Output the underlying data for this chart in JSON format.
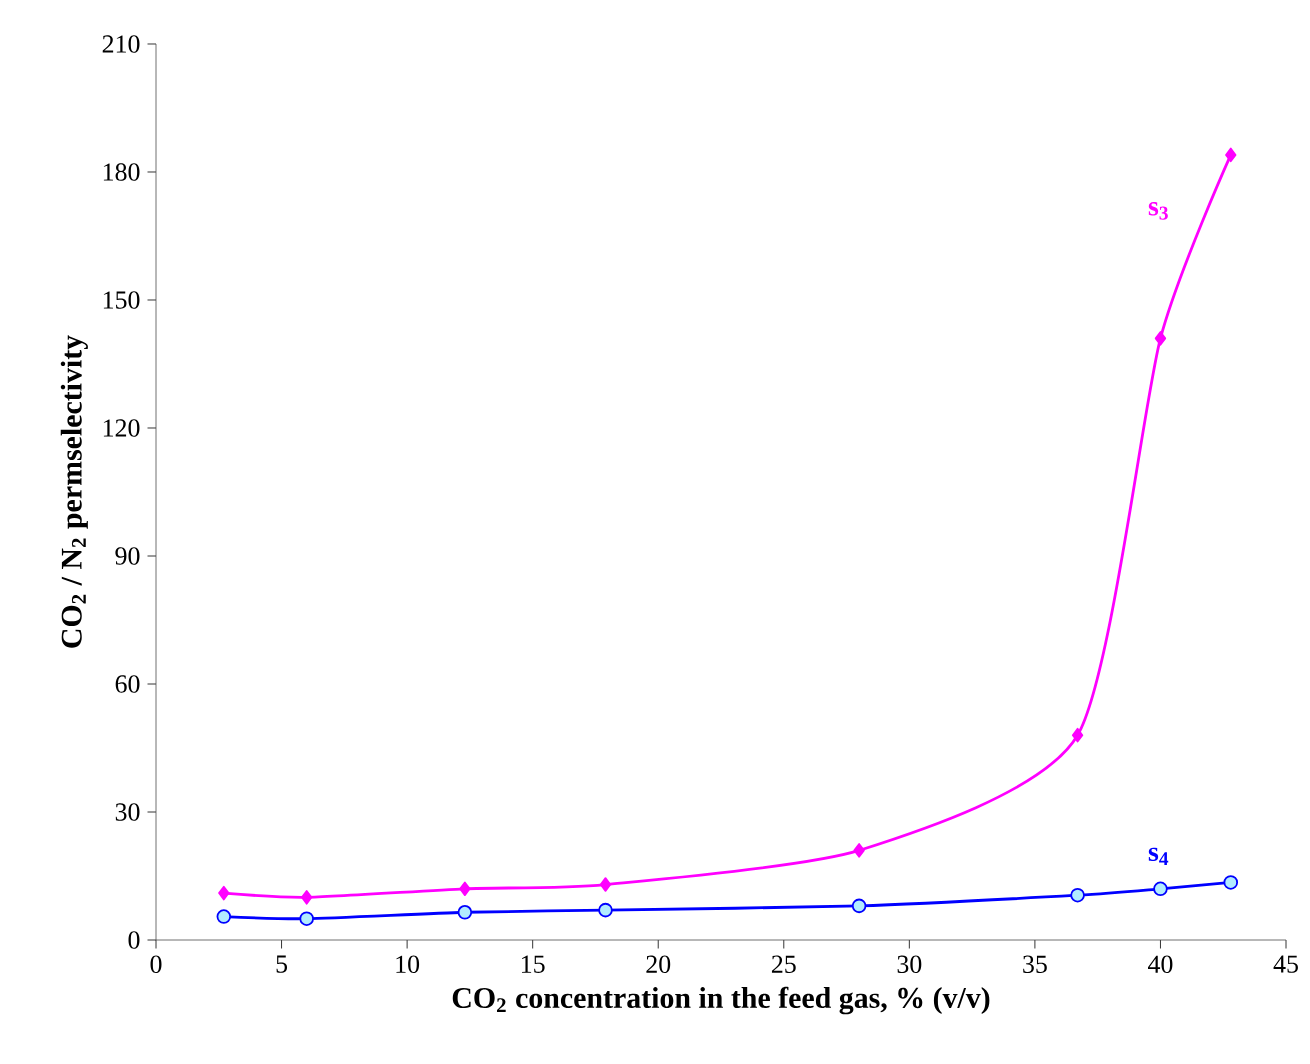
{
  "chart_data": {
    "type": "line",
    "xlabel": "CO$_{2}$ concentration in the feed gas, % (v/v)",
    "ylabel": "CO$_{2}$ / N$_{2}$ permselectivity",
    "x": [
      2.7,
      6,
      12.3,
      17.9,
      28,
      36.7,
      40,
      42.8
    ],
    "series": [
      {
        "name": "s$_{3}$",
        "color": "#ff00ff",
        "marker": "diamond",
        "values": [
          11,
          10,
          12,
          13,
          21,
          48,
          141,
          184
        ]
      },
      {
        "name": "s$_{4}$",
        "color": "#0000ff",
        "marker": "circle",
        "values": [
          5.5,
          5,
          6.5,
          7,
          8,
          10.5,
          12,
          13.5
        ]
      }
    ],
    "xlim": [
      0,
      45
    ],
    "xticks": [
      0,
      5,
      10,
      15,
      20,
      25,
      30,
      35,
      40,
      45
    ],
    "ylim": [
      0,
      210
    ],
    "yticks": [
      0,
      30,
      60,
      90,
      120,
      150,
      180,
      210
    ],
    "grid": false
  }
}
